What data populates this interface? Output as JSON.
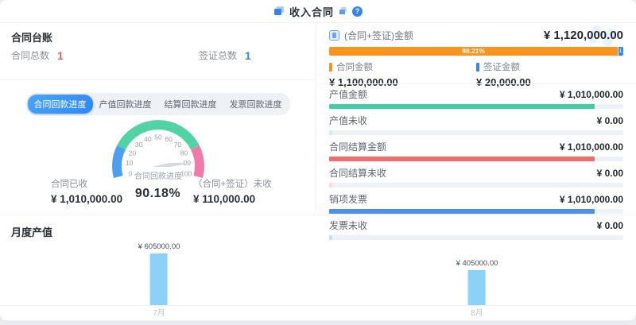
{
  "header": {
    "title": "收入合同",
    "help_glyph": "?"
  },
  "ledger": {
    "title": "合同台账",
    "stats": [
      {
        "label": "合同总数",
        "value": "1",
        "color": "#fa5a55"
      },
      {
        "label": "签证总数",
        "value": "1",
        "color": "#2f86f6"
      }
    ],
    "tabs": [
      {
        "label": "合同回款进度",
        "active": true
      },
      {
        "label": "产值回款进度",
        "active": false
      },
      {
        "label": "结算回款进度",
        "active": false
      },
      {
        "label": "发票回款进度",
        "active": false
      }
    ],
    "received_label": "合同已收",
    "received_value": "¥ 1,010,000.00",
    "unreceived_label": "（合同+签证）未收",
    "unreceived_value": "¥ 110,000.00"
  },
  "summary": {
    "title": "(合同+签证)金额",
    "total": "¥ 1,120,000.00",
    "bar": {
      "main_pct": 98.21,
      "main_label": "98.21%",
      "main_color": "#f9941e",
      "rest_label": "1.",
      "rest_color": "#2f86f6"
    },
    "legend": [
      {
        "label": "合同金额",
        "value": "¥ 1,100,000.00",
        "color": "#f9941e"
      },
      {
        "label": "签证金额",
        "value": "¥ 20,000.00",
        "color": "#2f86f6"
      }
    ],
    "rows": [
      {
        "label": "产值金额",
        "value": "¥ 1,010,000.00",
        "color": "#3ecfa5",
        "pct": 90.18
      },
      {
        "label": "产值未收",
        "value": "¥ 0.00",
        "color": "#c9f0e3",
        "pct": 1.2
      },
      {
        "label": "合同结算金额",
        "value": "¥ 1,010,000.00",
        "color": "#f56c6c",
        "pct": 90.18
      },
      {
        "label": "合同结算未收",
        "value": "¥ 0.00",
        "color": "#fbdbdb",
        "pct": 1.2
      },
      {
        "label": "销项发票",
        "value": "¥ 1,010,000.00",
        "color": "#4b8ff0",
        "pct": 90.18
      },
      {
        "label": "发票未收",
        "value": "¥ 0.00",
        "color": "#cadef9",
        "pct": 1.2
      }
    ]
  },
  "chart_data": [
    {
      "type": "gauge",
      "title": "合同回款进度",
      "value": 90.18,
      "value_label": "90.18%",
      "min": 0,
      "max": 100,
      "ticks": [
        0,
        10,
        20,
        30,
        40,
        50,
        60,
        70,
        80,
        90,
        100
      ],
      "needle_color": "#d5d8dd",
      "segments": [
        {
          "from": 0,
          "to": 20,
          "color": "#4d9ff0"
        },
        {
          "from": 20,
          "to": 80,
          "color": "#52d3a6"
        },
        {
          "from": 80,
          "to": 100,
          "color": "#f07ba8"
        }
      ]
    },
    {
      "type": "bar",
      "title": "月度产值",
      "categories": [
        "7月",
        "8月"
      ],
      "values": [
        605000,
        405000
      ],
      "value_labels": [
        "¥ 605000.00",
        "¥ 405000.00"
      ],
      "bar_color": "#8cd1f7",
      "ylim": [
        0,
        605000
      ],
      "grid": false,
      "legend_position": "none"
    }
  ]
}
